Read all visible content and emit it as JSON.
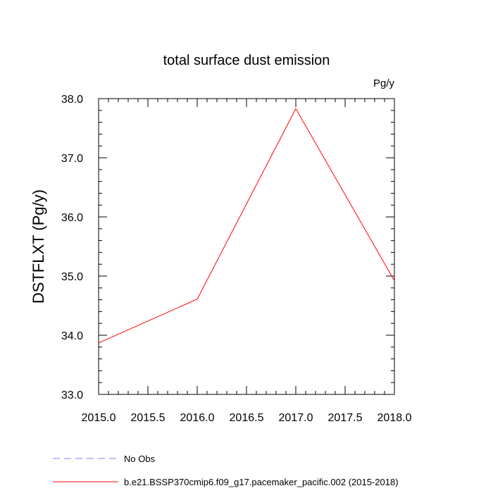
{
  "chart_data": {
    "type": "line",
    "title": "total surface dust emission",
    "units": "Pg/y",
    "ylabel": "DSTFLXT  (Pg/y)",
    "xlabel": "",
    "xlim": [
      2015.0,
      2018.0
    ],
    "ylim": [
      33.0,
      38.0
    ],
    "x_ticks": [
      "2015.0",
      "2015.5",
      "2016.0",
      "2016.5",
      "2017.0",
      "2017.5",
      "2018.0"
    ],
    "y_ticks": [
      "33.0",
      "34.0",
      "35.0",
      "36.0",
      "37.0",
      "38.0"
    ],
    "grid": false,
    "legend_position": "bottom",
    "series": [
      {
        "name": "No Obs",
        "color": "#8080ff",
        "style": "dashed",
        "x": [],
        "values": []
      },
      {
        "name": "b.e21.BSSP370cmip6.f09_g17.pacemaker_pacific.002 (2015-2018)",
        "color": "#ff0000",
        "style": "solid",
        "x": [
          2015,
          2016,
          2017,
          2018
        ],
        "values": [
          33.87,
          34.61,
          37.83,
          34.92
        ]
      }
    ]
  }
}
